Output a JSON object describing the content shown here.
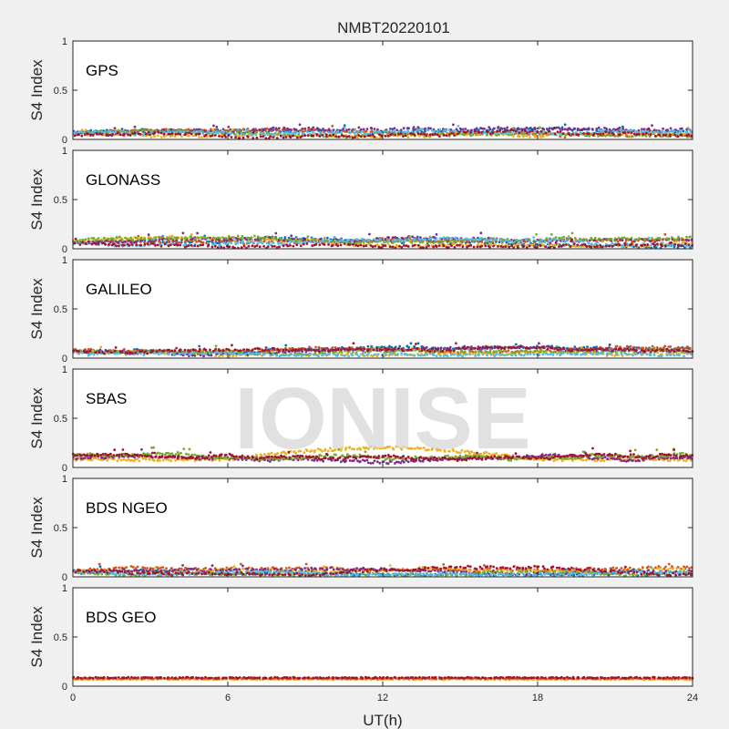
{
  "figure": {
    "title": "NMBT20220101",
    "watermark": "IONISE",
    "xlabel": "UT(h)",
    "ylabel": "S4 Index"
  },
  "chart_data": [
    {
      "type": "scatter",
      "panel_label": "GPS",
      "xlim": [
        0,
        24
      ],
      "ylim": [
        0,
        1
      ],
      "xticks": [
        0,
        6,
        12,
        18,
        24
      ],
      "yticks": [
        0,
        0.5,
        1
      ],
      "ytick_labels": [
        "0",
        "0.5",
        "1"
      ],
      "series_colors": [
        "#0072BD",
        "#D95319",
        "#EDB120",
        "#7E2F8E",
        "#77AC30",
        "#4DBEEE",
        "#A2142F"
      ],
      "approx_s4_range": [
        0.02,
        0.15
      ]
    },
    {
      "type": "scatter",
      "panel_label": "GLONASS",
      "xlim": [
        0,
        24
      ],
      "ylim": [
        0,
        1
      ],
      "xticks": [
        0,
        6,
        12,
        18,
        24
      ],
      "yticks": [
        0,
        0.5,
        1
      ],
      "ytick_labels": [
        "0",
        "0.5",
        "1"
      ],
      "series_colors": [
        "#0072BD",
        "#D95319",
        "#EDB120",
        "#7E2F8E",
        "#77AC30",
        "#4DBEEE",
        "#A2142F"
      ],
      "approx_s4_range": [
        0.02,
        0.16
      ]
    },
    {
      "type": "scatter",
      "panel_label": "GALILEO",
      "xlim": [
        0,
        24
      ],
      "ylim": [
        0,
        1
      ],
      "xticks": [
        0,
        6,
        12,
        18,
        24
      ],
      "yticks": [
        0,
        0.5,
        1
      ],
      "ytick_labels": [
        "0",
        "0.5",
        "1"
      ],
      "series_colors": [
        "#0072BD",
        "#D95319",
        "#EDB120",
        "#7E2F8E",
        "#77AC30",
        "#4DBEEE",
        "#A2142F"
      ],
      "approx_s4_range": [
        0.03,
        0.15
      ]
    },
    {
      "type": "scatter",
      "panel_label": "SBAS",
      "xlim": [
        0,
        24
      ],
      "ylim": [
        0,
        1
      ],
      "xticks": [
        0,
        6,
        12,
        18,
        24
      ],
      "yticks": [
        0,
        0.5,
        1
      ],
      "ytick_labels": [
        "0",
        "0.5",
        "1"
      ],
      "series_colors": [
        "#EDB120",
        "#7E2F8E",
        "#77AC30",
        "#A2142F"
      ],
      "approx_s4_range": [
        0.05,
        0.23
      ]
    },
    {
      "type": "scatter",
      "panel_label": "BDS NGEO",
      "xlim": [
        0,
        24
      ],
      "ylim": [
        0,
        1
      ],
      "xticks": [
        0,
        6,
        12,
        18,
        24
      ],
      "yticks": [
        0,
        0.5,
        1
      ],
      "ytick_labels": [
        "0",
        "0.5",
        "1"
      ],
      "series_colors": [
        "#0072BD",
        "#D95319",
        "#EDB120",
        "#7E2F8E",
        "#77AC30",
        "#4DBEEE",
        "#A2142F"
      ],
      "approx_s4_range": [
        0.02,
        0.13
      ]
    },
    {
      "type": "scatter",
      "panel_label": "BDS GEO",
      "xlim": [
        0,
        24
      ],
      "ylim": [
        0,
        1
      ],
      "xticks": [
        0,
        6,
        12,
        18,
        24
      ],
      "xtick_labels": [
        "0",
        "6",
        "12",
        "18",
        "24"
      ],
      "yticks": [
        0,
        0.5,
        1
      ],
      "ytick_labels": [
        "0",
        "0.5",
        "1"
      ],
      "series_colors": [
        "#EDB120",
        "#D95319",
        "#A2142F"
      ],
      "approx_s4_range": [
        0.06,
        0.1
      ]
    }
  ]
}
